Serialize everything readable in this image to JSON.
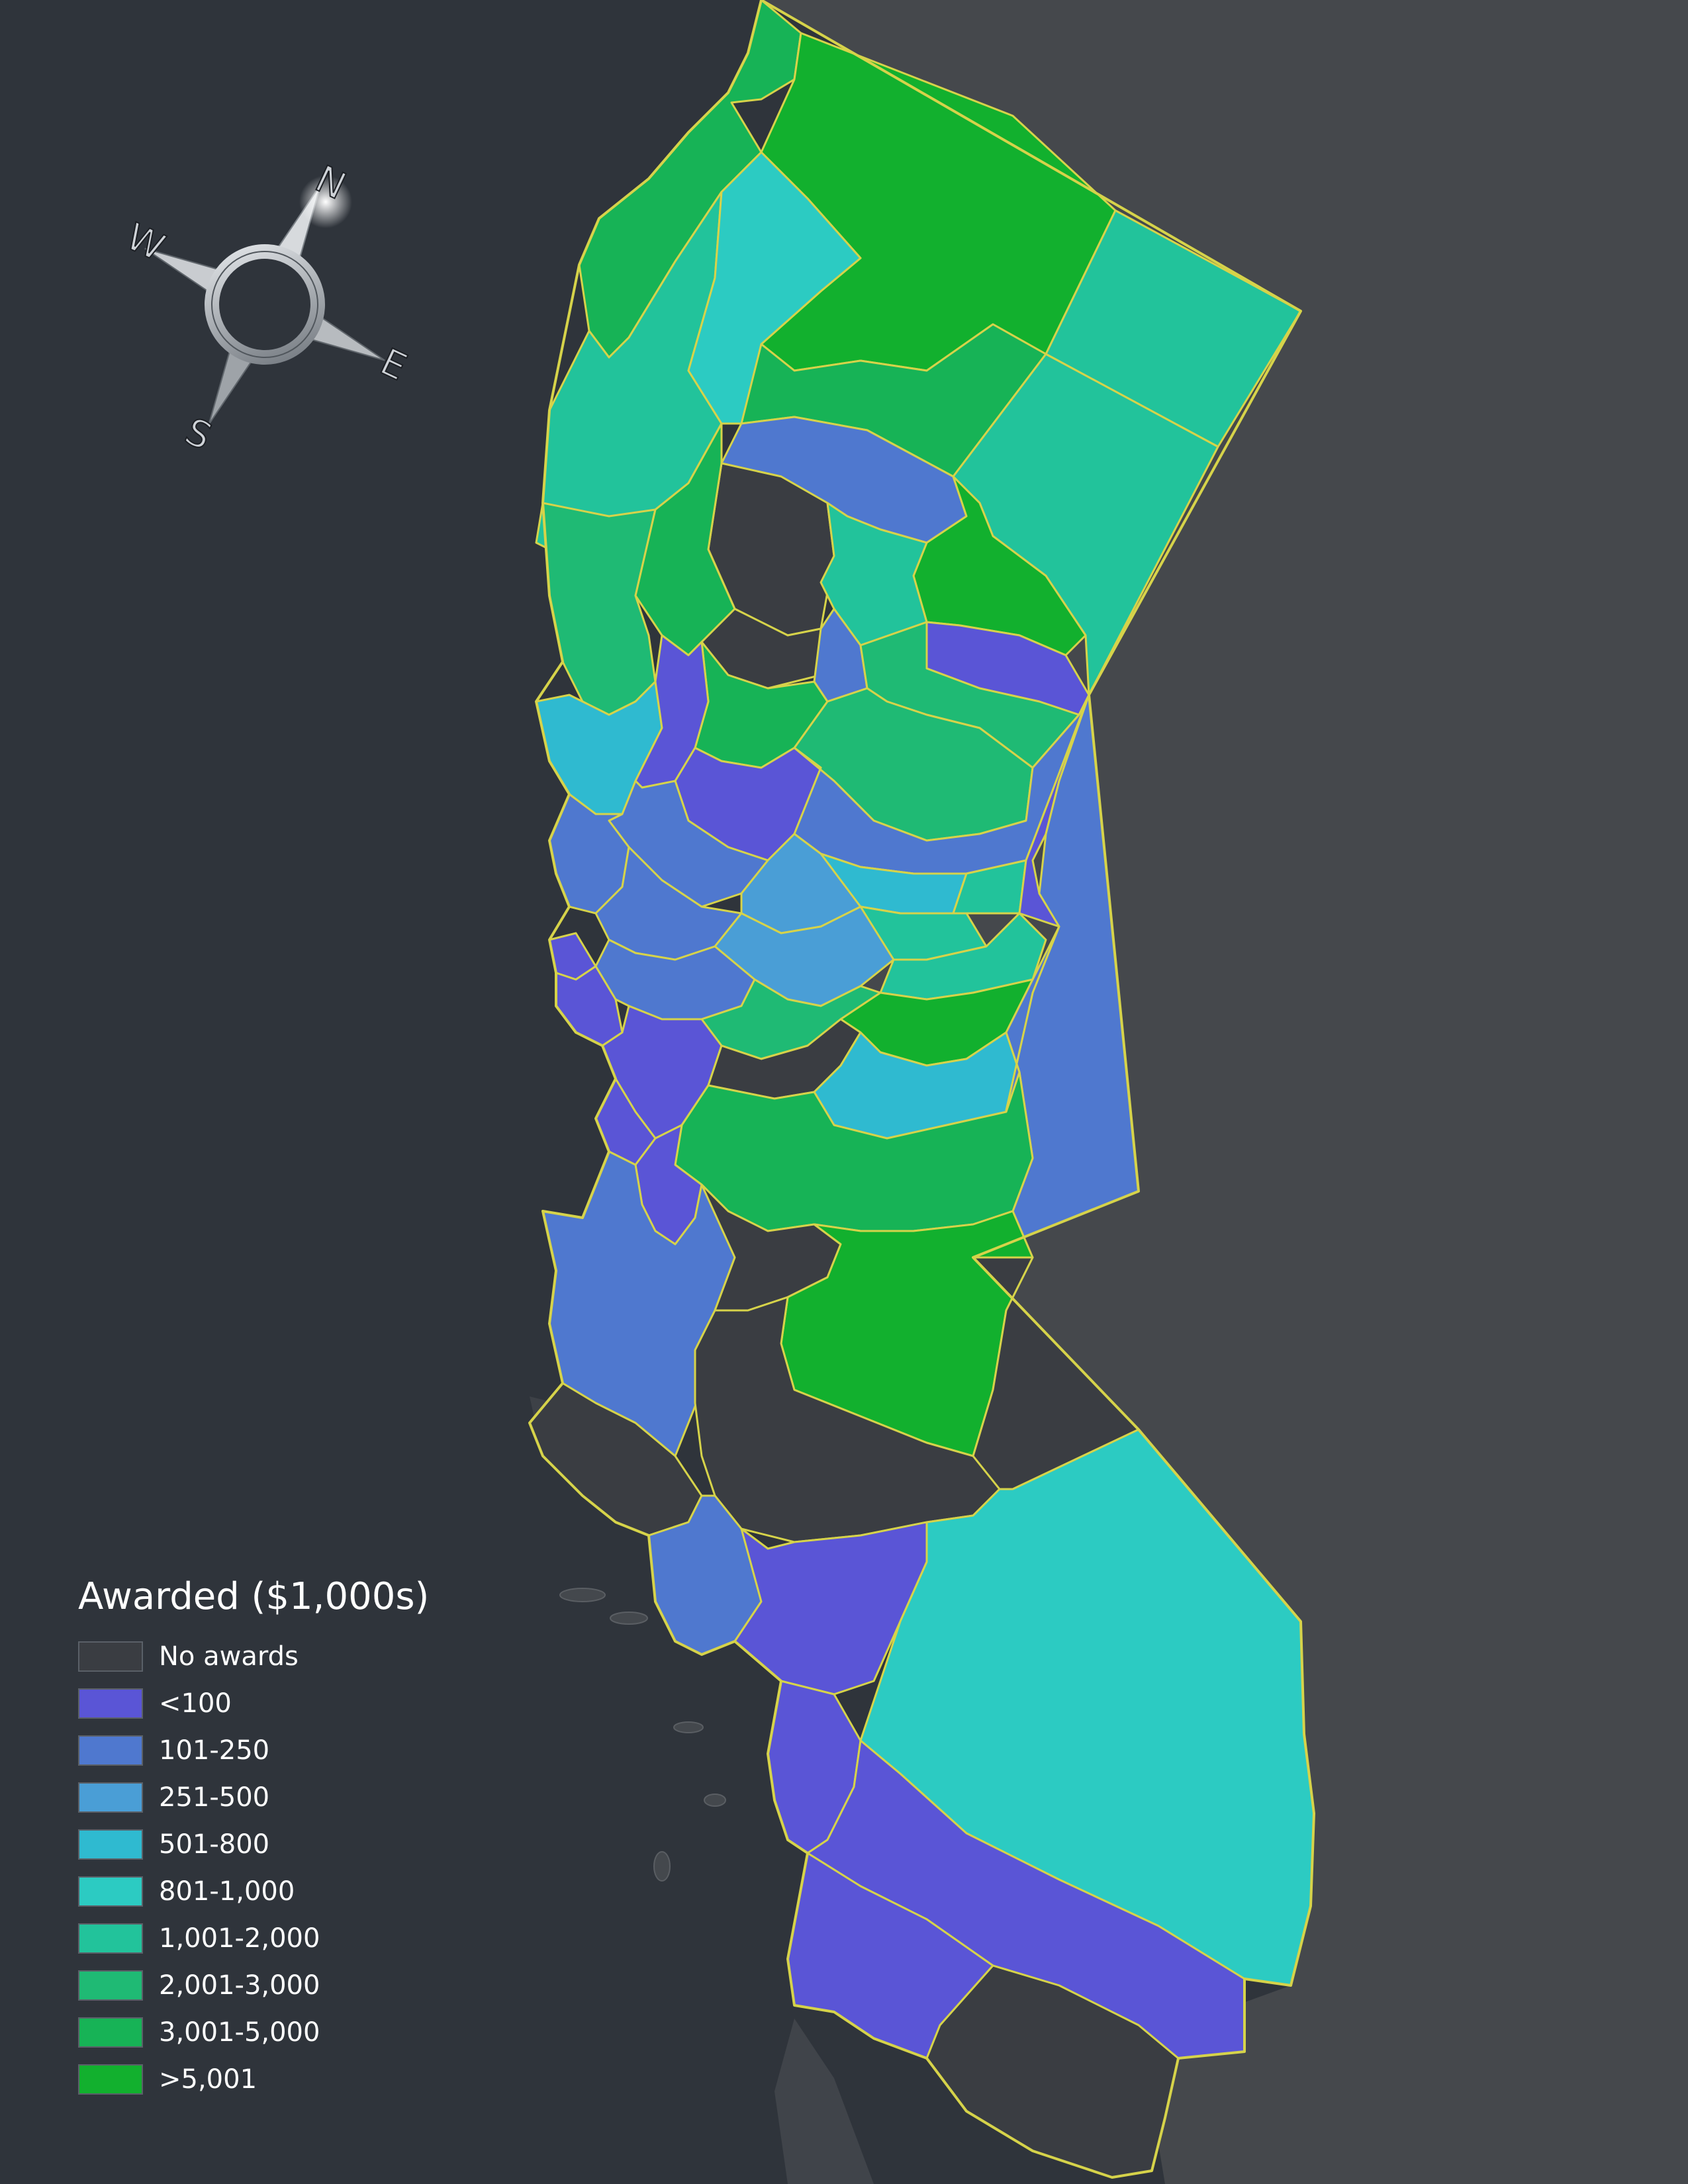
{
  "legend": {
    "title": "Awarded ($1,000s)",
    "classes": [
      {
        "label": "No awards",
        "color": "#3a3d42"
      },
      {
        "label": "<100",
        "color": "#5a55d6"
      },
      {
        "label": "101-250",
        "color": "#4f78cf"
      },
      {
        "label": "251-500",
        "color": "#4a9ed6"
      },
      {
        "label": "501-800",
        "color": "#2fbad0"
      },
      {
        "label": "801-1,000",
        "color": "#2ccbc2"
      },
      {
        "label": "1,001-2,000",
        "color": "#22c39b"
      },
      {
        "label": "2,001-3,000",
        "color": "#1fba74"
      },
      {
        "label": "3,001-5,000",
        "color": "#17b356"
      },
      {
        "label": ">5,001",
        "color": "#12b02e"
      }
    ]
  },
  "compass": {
    "n": "N",
    "s": "S",
    "e": "E",
    "w": "W"
  },
  "colors": {
    "ocean": "#2f343b",
    "land_relief": "#45484c",
    "boundary": "#d6d34a"
  }
}
